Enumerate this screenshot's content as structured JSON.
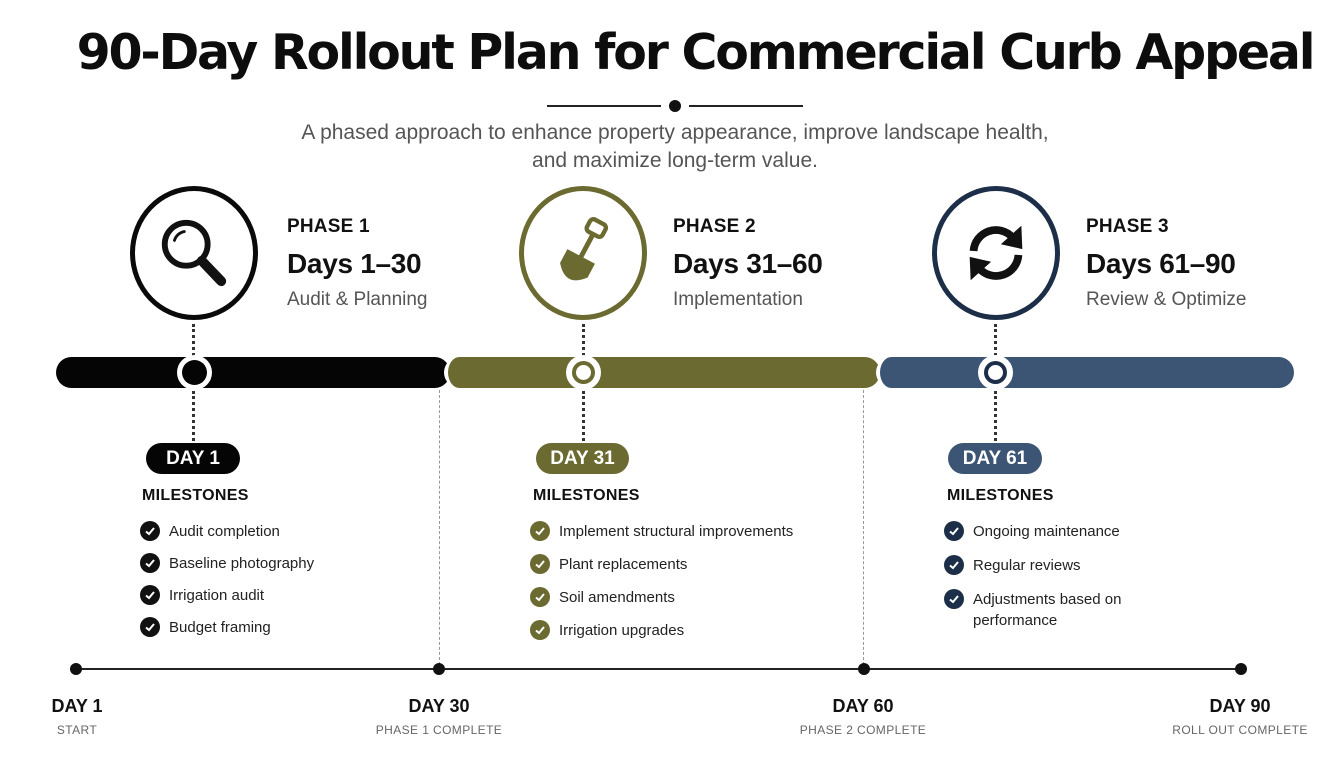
{
  "title": "90-Day Rollout Plan for Commercial Curb Appeal",
  "subtitle_line1": "A phased approach to enhance property appearance, improve landscape health,",
  "subtitle_line2": "and maximize long-term value.",
  "colors": {
    "phase1": "#050505",
    "phase2": "#6b6a30",
    "phase3": "#3c5574",
    "phase3_dark": "#1d2f48"
  },
  "phases": [
    {
      "label": "PHASE 1",
      "days": "Days 1–30",
      "sub": "Audit & Planning",
      "icon": "magnifier-icon",
      "pill": "DAY 1",
      "milestones_title": "MILESTONES",
      "milestones": [
        "Audit completion",
        "Baseline photography",
        "Irrigation audit",
        "Budget framing"
      ]
    },
    {
      "label": "PHASE 2",
      "days": "Days 31–60",
      "sub": "Implementation",
      "icon": "shovel-icon",
      "pill": "DAY 31",
      "milestones_title": "MILESTONES",
      "milestones": [
        "Implement structural improvements",
        "Plant replacements",
        "Soil amendments",
        "Irrigation upgrades"
      ]
    },
    {
      "label": "PHASE 3",
      "days": "Days 61–90",
      "sub": "Review & Optimize",
      "icon": "refresh-icon",
      "pill": "DAY 61",
      "milestones_title": "MILESTONES",
      "milestones": [
        "Ongoing maintenance",
        "Regular reviews",
        "Adjustments based on",
        "performance"
      ]
    }
  ],
  "timeline": [
    {
      "day": "DAY 1",
      "caption": "START"
    },
    {
      "day": "DAY 30",
      "caption": "PHASE 1 COMPLETE"
    },
    {
      "day": "DAY 60",
      "caption": "PHASE 2 COMPLETE"
    },
    {
      "day": "DAY 90",
      "caption": "ROLL OUT COMPLETE"
    }
  ]
}
